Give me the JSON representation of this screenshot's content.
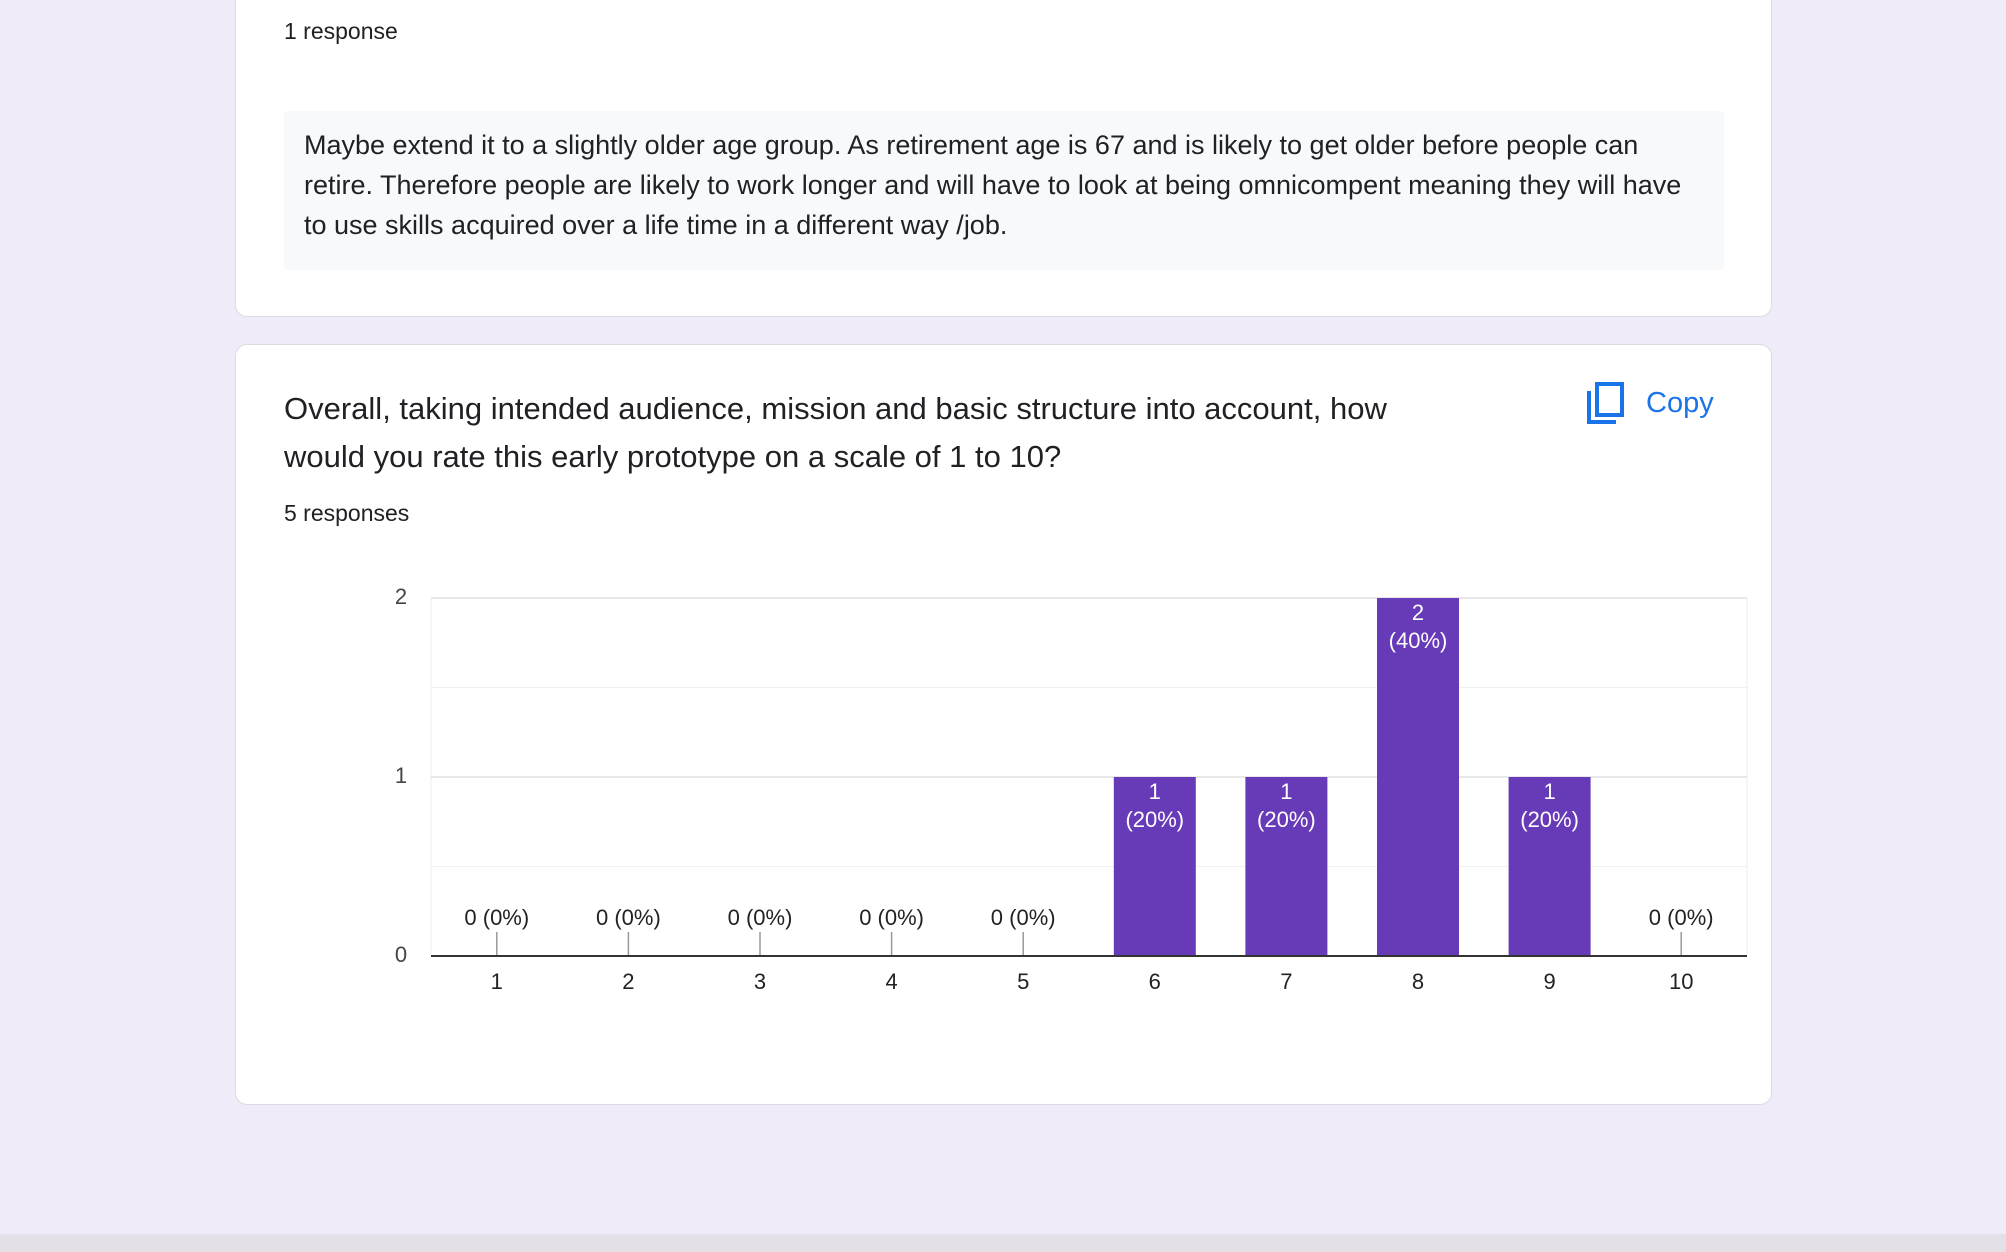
{
  "cards": [
    {
      "response_count": "1 response",
      "answer": "Maybe extend it to a slightly older age group. As retirement age is 67 and is likely to get older before people can retire. Therefore people are likely to work longer and will have to look at being omnicompent meaning they will have to use skills acquired over a life time in a different way /job."
    },
    {
      "question": "Overall, taking intended audience, mission and basic structure into account, how would you rate this early prototype on a scale of 1 to 10?",
      "copy_button": "Copy",
      "response_count": "5 responses",
      "chart_data": {
        "type": "bar",
        "categories": [
          "1",
          "2",
          "3",
          "4",
          "5",
          "6",
          "7",
          "8",
          "9",
          "10"
        ],
        "values": [
          0,
          0,
          0,
          0,
          0,
          1,
          1,
          2,
          1,
          0
        ],
        "value_labels": [
          "0 (0%)",
          "0 (0%)",
          "0 (0%)",
          "0 (0%)",
          "0 (0%)",
          "1 (20%)",
          "1 (20%)",
          "2 (40%)",
          "1 (20%)",
          "0 (0%)"
        ],
        "color": "#673ab7",
        "ylim": [
          0,
          2
        ],
        "yticks": [
          0,
          1,
          2
        ],
        "grid": true
      }
    }
  ]
}
